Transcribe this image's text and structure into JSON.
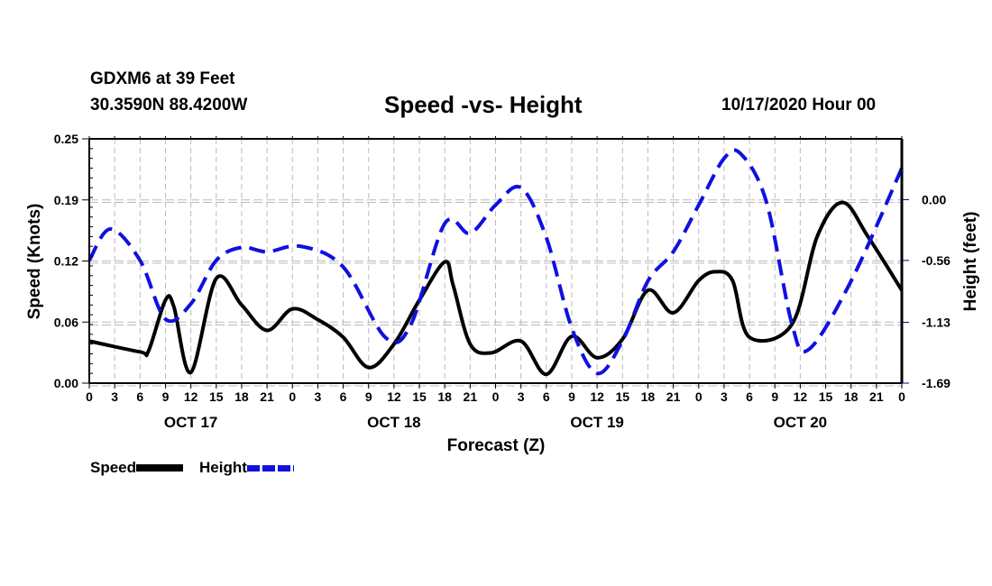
{
  "header": {
    "station": "GDXM6 at 39 Feet",
    "coordinates": "30.3590N 88.4200W",
    "title": "Speed -vs- Height",
    "datetime": "10/17/2020 Hour 00"
  },
  "legend": {
    "speed_label": "Speed",
    "height_label": "Height"
  },
  "colors": {
    "speed": "#000000",
    "height": "#1010e0",
    "grid": "#bbbbbb"
  },
  "chart_data": {
    "type": "line",
    "title": "Speed -vs- Height",
    "xlabel": "Forecast (Z)",
    "ylabel": "Speed (Knots)",
    "y2label": "Height (feet)",
    "xlim_hours": [
      0,
      96
    ],
    "ylim": [
      0,
      0.25
    ],
    "y2lim": [
      -1.69,
      0.56
    ],
    "grid": true,
    "legend_position": "bottom-left",
    "x_tick_labels": [
      "0",
      "3",
      "6",
      "9",
      "12",
      "15",
      "18",
      "21",
      "0",
      "3",
      "6",
      "9",
      "12",
      "15",
      "18",
      "21",
      "0",
      "3",
      "6",
      "9",
      "12",
      "15",
      "18",
      "21",
      "0",
      "3",
      "6",
      "9",
      "12",
      "15",
      "18",
      "21",
      "0"
    ],
    "day_labels": [
      {
        "label": "OCT 17",
        "hour": 12
      },
      {
        "label": "OCT 18",
        "hour": 36
      },
      {
        "label": "OCT 19",
        "hour": 60
      },
      {
        "label": "OCT 20",
        "hour": 84
      }
    ],
    "y_tick_labels": [
      "0.00",
      "0.06",
      "0.12",
      "0.19",
      "0.25"
    ],
    "y_ticks": [
      0,
      0.0625,
      0.125,
      0.1875,
      0.25
    ],
    "y2_tick_labels": [
      "-1.69",
      "-1.13",
      "-0.56",
      "0.00"
    ],
    "y2_ticks": [
      -1.69,
      -1.13,
      -0.56,
      0.0
    ],
    "series": [
      {
        "name": "Speed",
        "axis": "left",
        "style": "solid",
        "hours": [
          0,
          6,
          7,
          9,
          10,
          12,
          15,
          18,
          21,
          24,
          27,
          30,
          33,
          36,
          39,
          42,
          43,
          45,
          47.5,
          51,
          54,
          57,
          60,
          63,
          66,
          69,
          72,
          74,
          76,
          78,
          83,
          86,
          89,
          92,
          96
        ],
        "values": [
          0.043,
          0.032,
          0.033,
          0.085,
          0.078,
          0.011,
          0.107,
          0.08,
          0.054,
          0.076,
          0.065,
          0.047,
          0.016,
          0.04,
          0.085,
          0.124,
          0.1,
          0.04,
          0.031,
          0.043,
          0.009,
          0.048,
          0.026,
          0.045,
          0.095,
          0.072,
          0.105,
          0.114,
          0.105,
          0.047,
          0.06,
          0.15,
          0.185,
          0.15,
          0.095
        ]
      },
      {
        "name": "Height",
        "axis": "right",
        "style": "dashed",
        "hours": [
          0,
          2.5,
          6,
          9,
          12,
          15,
          18,
          21,
          25,
          30,
          35,
          38,
          42,
          45,
          48,
          51,
          54,
          57,
          60,
          63,
          66,
          69,
          72,
          75,
          77,
          80,
          83,
          85,
          90,
          96
        ],
        "values": [
          -0.56,
          -0.27,
          -0.56,
          -1.1,
          -0.96,
          -0.56,
          -0.44,
          -0.48,
          -0.43,
          -0.62,
          -1.27,
          -1.15,
          -0.22,
          -0.31,
          -0.05,
          0.11,
          -0.35,
          -1.18,
          -1.6,
          -1.3,
          -0.75,
          -0.48,
          -0.05,
          0.38,
          0.42,
          -0.02,
          -1.14,
          -1.38,
          -0.75,
          0.29
        ]
      }
    ]
  }
}
